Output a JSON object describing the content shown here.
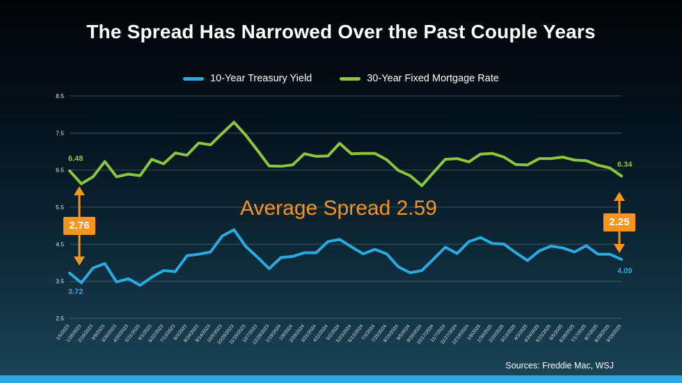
{
  "page": {
    "title": "The Spread Has Narrowed Over the Past Couple Years",
    "sources": "Sources: Freddie Mac, WSJ"
  },
  "colors": {
    "treasury_blue": "#29abe2",
    "mortgage_green": "#8cc63f",
    "accent_orange": "#f7941d",
    "footer_bar_blue": "#29abe2"
  },
  "legend": [
    {
      "label": "10-Year Treasury Yield",
      "color": "#29abe2"
    },
    {
      "label": "30-Year Fixed Mortgage Rate",
      "color": "#8cc63f"
    }
  ],
  "annotations": {
    "average_spread": "Average Spread 2.59",
    "left_spread": "2.76",
    "right_spread": "2.25",
    "mortgage_start": "6.48",
    "mortgage_end": "6.34",
    "treasury_start": "3.72",
    "treasury_end": "4.09"
  },
  "chart_data": {
    "type": "line",
    "title": "The Spread Has Narrowed Over the Past Couple Years",
    "xlabel": "",
    "ylabel": "",
    "ylim": [
      2.5,
      8.5
    ],
    "yticks": [
      2.5,
      3.5,
      4.5,
      5.5,
      6.5,
      7.5,
      8.5
    ],
    "grid": true,
    "legend_position": "top",
    "x": [
      "1/5/2023",
      "1/26/2023",
      "2/16/2023",
      "3/9/2023",
      "3/30/2023",
      "4/20/2023",
      "5/11/2023",
      "6/1/2023",
      "6/22/2023",
      "7/13/2023",
      "8/3/2023",
      "8/24/2023",
      "9/14/2023",
      "10/5/2023",
      "10/26/2023",
      "11/16/2023",
      "12/7/2023",
      "12/28/2023",
      "1/18/2024",
      "2/8/2024",
      "2/29/2024",
      "3/21/2024",
      "4/11/2024",
      "5/2/2024",
      "5/23/2024",
      "6/13/2024",
      "7/3/2024",
      "7/25/2024",
      "8/15/2024",
      "9/5/2024",
      "9/26/2024",
      "10/17/2024",
      "11/7/2024",
      "11/27/2024",
      "12/19/2024",
      "1/9/2025",
      "1/30/2025",
      "2/20/2025",
      "3/13/2025",
      "4/3/2025",
      "4/24/2025",
      "5/15/2025",
      "6/5/2025",
      "6/26/2025",
      "7/17/2025",
      "8/7/2025",
      "8/28/2025",
      "9/18/2025"
    ],
    "series": [
      {
        "name": "10-Year Treasury Yield",
        "color": "#29abe2",
        "values": [
          3.72,
          3.46,
          3.86,
          3.98,
          3.48,
          3.57,
          3.39,
          3.61,
          3.79,
          3.76,
          4.19,
          4.23,
          4.29,
          4.72,
          4.89,
          4.44,
          4.15,
          3.84,
          4.14,
          4.17,
          4.27,
          4.27,
          4.57,
          4.63,
          4.43,
          4.24,
          4.36,
          4.24,
          3.89,
          3.73,
          3.79,
          4.1,
          4.42,
          4.25,
          4.57,
          4.68,
          4.52,
          4.5,
          4.27,
          4.06,
          4.32,
          4.45,
          4.4,
          4.29,
          4.46,
          4.23,
          4.23,
          4.09
        ]
      },
      {
        "name": "30-Year Fixed Mortgage Rate",
        "color": "#8cc63f",
        "values": [
          6.48,
          6.13,
          6.32,
          6.73,
          6.32,
          6.39,
          6.35,
          6.79,
          6.67,
          6.96,
          6.9,
          7.23,
          7.18,
          7.49,
          7.79,
          7.44,
          7.03,
          6.61,
          6.6,
          6.64,
          6.94,
          6.87,
          6.88,
          7.22,
          6.94,
          6.95,
          6.95,
          6.78,
          6.49,
          6.35,
          6.08,
          6.44,
          6.79,
          6.81,
          6.72,
          6.93,
          6.95,
          6.85,
          6.65,
          6.64,
          6.81,
          6.81,
          6.85,
          6.77,
          6.75,
          6.63,
          6.56,
          6.34
        ]
      }
    ]
  }
}
